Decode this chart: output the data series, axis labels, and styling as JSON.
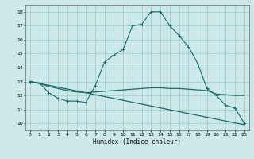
{
  "title": "",
  "xlabel": "Humidex (Indice chaleur)",
  "ylabel": "",
  "background_color": "#cce8e8",
  "grid_color": "#99cccc",
  "line_color": "#1a6b6b",
  "xlim": [
    -0.5,
    23.5
  ],
  "ylim": [
    9.5,
    18.5
  ],
  "xticks": [
    0,
    1,
    2,
    3,
    4,
    5,
    6,
    7,
    8,
    9,
    10,
    11,
    12,
    13,
    14,
    15,
    16,
    17,
    18,
    19,
    20,
    21,
    22,
    23
  ],
  "yticks": [
    10,
    11,
    12,
    13,
    14,
    15,
    16,
    17,
    18
  ],
  "line1_x": [
    0,
    1,
    2,
    3,
    4,
    5,
    6,
    7,
    8,
    9,
    10,
    11,
    12,
    13,
    14,
    15,
    16,
    17,
    18,
    19,
    20,
    21,
    22,
    23
  ],
  "line1_y": [
    13.0,
    12.9,
    12.2,
    11.8,
    11.6,
    11.6,
    11.5,
    12.7,
    14.4,
    14.9,
    15.3,
    17.0,
    17.1,
    18.0,
    18.0,
    17.0,
    16.3,
    15.5,
    14.3,
    12.5,
    12.0,
    11.3,
    11.1,
    10.0
  ],
  "line2_x": [
    0,
    1,
    2,
    3,
    4,
    5,
    6,
    7,
    8,
    9,
    10,
    11,
    12,
    13,
    14,
    15,
    16,
    17,
    18,
    19,
    20,
    21,
    22,
    23
  ],
  "line2_y": [
    13.0,
    12.85,
    12.65,
    12.5,
    12.35,
    12.25,
    12.2,
    12.25,
    12.3,
    12.35,
    12.4,
    12.45,
    12.5,
    12.55,
    12.55,
    12.5,
    12.5,
    12.45,
    12.4,
    12.35,
    12.1,
    12.05,
    12.0,
    12.0
  ],
  "line3_x": [
    0,
    23
  ],
  "line3_y": [
    13.0,
    9.9
  ]
}
